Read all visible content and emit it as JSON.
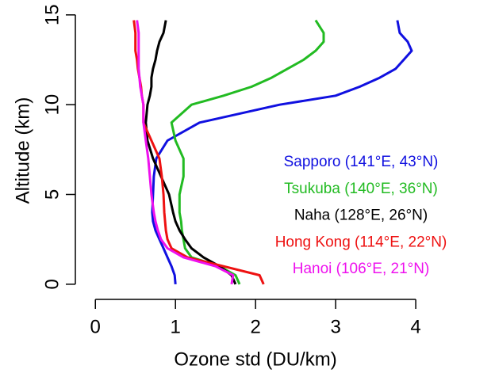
{
  "chart_data": {
    "type": "profile",
    "x_label": "Ozone std (DU/km)",
    "y_label": "Altitude (km)",
    "y": [
      0,
      0.5,
      1,
      1.5,
      2,
      2.5,
      3,
      3.5,
      4,
      5,
      6,
      7,
      8,
      9,
      10,
      10.5,
      11,
      11.5,
      12,
      12.5,
      13,
      13.5,
      14,
      14.7
    ],
    "series": [
      {
        "name": "Sapporo (141°E, 43°N)",
        "color": "#1010e0",
        "values": [
          1.0,
          0.99,
          0.95,
          0.9,
          0.85,
          0.8,
          0.75,
          0.72,
          0.71,
          0.72,
          0.73,
          0.76,
          0.9,
          1.3,
          2.3,
          3.0,
          3.3,
          3.55,
          3.75,
          3.85,
          3.95,
          3.9,
          3.8,
          3.77
        ]
      },
      {
        "name": "Tsukuba (140°E, 36°N)",
        "color": "#22bb22",
        "values": [
          1.8,
          1.75,
          1.55,
          1.2,
          1.12,
          1.1,
          1.08,
          1.07,
          1.05,
          1.05,
          1.1,
          1.1,
          1.0,
          0.95,
          1.2,
          1.6,
          1.95,
          2.2,
          2.4,
          2.6,
          2.75,
          2.85,
          2.85,
          2.75
        ]
      },
      {
        "name": "Naha (128°E, 26°N)",
        "color": "#000000",
        "values": [
          1.75,
          1.7,
          1.55,
          1.35,
          1.2,
          1.12,
          1.05,
          1.0,
          0.97,
          0.92,
          0.82,
          0.72,
          0.65,
          0.63,
          0.65,
          0.68,
          0.7,
          0.7,
          0.72,
          0.75,
          0.77,
          0.8,
          0.85,
          0.88
        ]
      },
      {
        "name": "Hong Kong (114°E, 22°N)",
        "color": "#ee1111",
        "values": [
          2.1,
          2.05,
          1.6,
          1.15,
          0.95,
          0.9,
          0.88,
          0.87,
          0.86,
          0.85,
          0.83,
          0.8,
          0.7,
          0.6,
          0.6,
          0.58,
          0.57,
          0.55,
          0.53,
          0.52,
          0.5,
          0.5,
          0.5,
          0.48
        ]
      },
      {
        "name": "Hanoi (106°E, 21°N)",
        "color": "#ee11ee",
        "values": [
          1.7,
          1.72,
          1.5,
          1.1,
          0.9,
          0.82,
          0.78,
          0.75,
          0.73,
          0.7,
          0.68,
          0.66,
          0.63,
          0.6,
          0.6,
          0.58,
          0.56,
          0.55,
          0.54,
          0.54,
          0.54,
          0.54,
          0.54,
          0.52
        ]
      }
    ],
    "xlim": [
      -0.25,
      4.95
    ],
    "xticks": [
      0,
      1,
      2,
      3,
      4
    ],
    "ylim": [
      -0.8,
      15.3
    ],
    "yticks": [
      0,
      5,
      10,
      15
    ]
  }
}
